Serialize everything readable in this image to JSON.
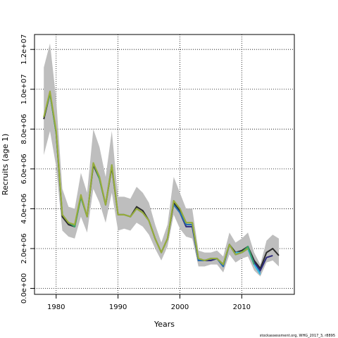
{
  "chart_data": {
    "type": "line",
    "title": "",
    "xlabel": "Years",
    "ylabel": "Recruits (age 1)",
    "xlim": [
      1976.5,
      2018.5
    ],
    "ylim": [
      -300000,
      12750000
    ],
    "grid": true,
    "grid_style": "dotted",
    "x_ticks": [
      1980,
      1990,
      2000,
      2010
    ],
    "x_tick_labels": [
      "1980",
      "1990",
      "2000",
      "2010"
    ],
    "y_ticks": [
      0,
      2000000,
      4000000,
      6000000,
      8000000,
      10000000,
      12000000
    ],
    "y_tick_labels": [
      "0.0e+00",
      "2.0e+06",
      "4.0e+06",
      "6.0e+06",
      "8.0e+06",
      "1.0e+07",
      "1.2e+07"
    ],
    "band": {
      "color": "#bebebe",
      "x": [
        1978,
        1979,
        1980,
        1981,
        1982,
        1983,
        1984,
        1985,
        1986,
        1987,
        1988,
        1989,
        1990,
        1991,
        1992,
        1993,
        1994,
        1995,
        1996,
        1997,
        1998,
        1999,
        2000,
        2001,
        2002,
        2003,
        2004,
        2005,
        2006,
        2007,
        2008,
        2009,
        2010,
        2011,
        2012,
        2013,
        2014,
        2015,
        2016
      ],
      "upper": [
        11100000,
        12300000,
        9500000,
        5000000,
        4100000,
        4000000,
        5800000,
        4800000,
        8000000,
        7100000,
        5600000,
        7900000,
        4600000,
        4600000,
        4500000,
        5100000,
        4800000,
        4300000,
        3200000,
        2300000,
        3200000,
        5600000,
        4800000,
        4000000,
        4000000,
        1900000,
        1800000,
        1800000,
        1900000,
        1600000,
        2800000,
        2300000,
        2500000,
        2800000,
        1800000,
        1200000,
        2400000,
        2700000,
        2500000
      ],
      "lower": [
        6700000,
        7900000,
        6100000,
        2900000,
        2600000,
        2500000,
        3600000,
        2800000,
        5000000,
        4300000,
        3300000,
        4800000,
        2900000,
        3000000,
        2900000,
        3300000,
        3100000,
        2700000,
        2000000,
        1400000,
        2100000,
        3700000,
        3000000,
        2600000,
        2500000,
        1100000,
        1100000,
        1200000,
        1200000,
        800000,
        1700000,
        1300000,
        1500000,
        1600000,
        900000,
        600000,
        1300000,
        1400000,
        1100000
      ]
    },
    "series": [
      {
        "color": "#2b2b2b",
        "x": [
          1978,
          1979,
          1980,
          1981,
          1982,
          1983,
          1984,
          1985,
          1986,
          1987,
          1988,
          1989,
          1990,
          1991,
          1992,
          1993,
          1994,
          1995,
          1996,
          1997,
          1998,
          1999,
          2000,
          2001,
          2002,
          2003,
          2004,
          2005,
          2006,
          2007,
          2008,
          2009,
          2010,
          2011,
          2012,
          2013,
          2014,
          2015,
          2016
        ],
        "values": [
          8500000,
          9800000,
          7800000,
          3600000,
          3200000,
          3100000,
          4600000,
          3600000,
          6200000,
          5500000,
          4200000,
          6100000,
          3700000,
          3700000,
          3600000,
          4100000,
          3900000,
          3400000,
          2500000,
          1800000,
          2500000,
          4300000,
          3900000,
          3200000,
          3200000,
          1400000,
          1400000,
          1400000,
          1500000,
          1200000,
          2200000,
          1800000,
          1900000,
          2100000,
          1400000,
          1000000,
          1800000,
          2000000,
          1650000
        ]
      },
      {
        "color": "#2d2a7e",
        "x": [
          2000,
          2001,
          2002,
          2003,
          2004,
          2005,
          2006,
          2007,
          2008,
          2009,
          2010,
          2011,
          2012,
          2013,
          2014,
          2015
        ],
        "values": [
          3800000,
          3100000,
          3100000,
          1400000,
          1400000,
          1400000,
          1500000,
          1100000,
          2200000,
          1700000,
          1800000,
          2000000,
          1300000,
          900000,
          1550000,
          1650000
        ]
      },
      {
        "color": "#2670b0",
        "x": [
          1999,
          2000,
          2001,
          2002,
          2003,
          2004,
          2005,
          2006,
          2007,
          2008,
          2009,
          2010,
          2011,
          2012,
          2013
        ],
        "values": [
          4200000,
          3800000,
          3200000,
          3200000,
          1400000,
          1400000,
          1500000,
          1500000,
          1100000,
          2200000,
          1700000,
          1800000,
          2000000,
          1200000,
          800000
        ]
      },
      {
        "color": "#36b9e0",
        "x": [
          2009,
          2010,
          2011,
          2012,
          2013
        ],
        "values": [
          1800000,
          1800000,
          2000000,
          1200000,
          700000
        ]
      },
      {
        "color": "#3ba56a",
        "x": [
          1978,
          1979,
          1980,
          1981,
          1982,
          1983,
          1984,
          1985,
          1986,
          1987,
          1988,
          1989,
          1990,
          1991,
          1992,
          1993,
          1994,
          1995,
          1996,
          1997,
          1998,
          1999,
          2000,
          2001,
          2002,
          2003,
          2004,
          2005,
          2006,
          2007,
          2008,
          2009,
          2010,
          2011,
          2012
        ],
        "values": [
          8600000,
          9800000,
          7800000,
          3700000,
          3300000,
          3100000,
          4600000,
          3600000,
          6300000,
          5500000,
          4200000,
          6200000,
          3700000,
          3700000,
          3600000,
          4000000,
          3800000,
          3400000,
          2500000,
          1800000,
          2500000,
          4400000,
          4000000,
          3300000,
          3300000,
          1500000,
          1400000,
          1500000,
          1500000,
          1200000,
          2200000,
          1700000,
          1800000,
          2100000,
          1200000
        ]
      },
      {
        "color": "#9aac3a",
        "x": [
          1978,
          1979,
          1980,
          1981,
          1982,
          1983,
          1984,
          1985,
          1986,
          1987,
          1988,
          1989,
          1990,
          1991,
          1992,
          1993,
          1994,
          1995,
          1996,
          1997,
          1998,
          1999,
          2000,
          2001,
          2002,
          2003,
          2004,
          2005,
          2006,
          2007,
          2008,
          2009,
          2010,
          2011
        ],
        "values": [
          8600000,
          9900000,
          7900000,
          3700000,
          3300000,
          3200000,
          4700000,
          3600000,
          6300000,
          5600000,
          4200000,
          6200000,
          3700000,
          3700000,
          3600000,
          4000000,
          3800000,
          3400000,
          2500000,
          1800000,
          2500000,
          4400000,
          4000000,
          3300000,
          3300000,
          1500000,
          1400000,
          1500000,
          1500000,
          1200000,
          2200000,
          1700000,
          1800000,
          2000000
        ]
      }
    ]
  },
  "credit": "stockassessment.org,  WHG_2017_3,  r8895"
}
